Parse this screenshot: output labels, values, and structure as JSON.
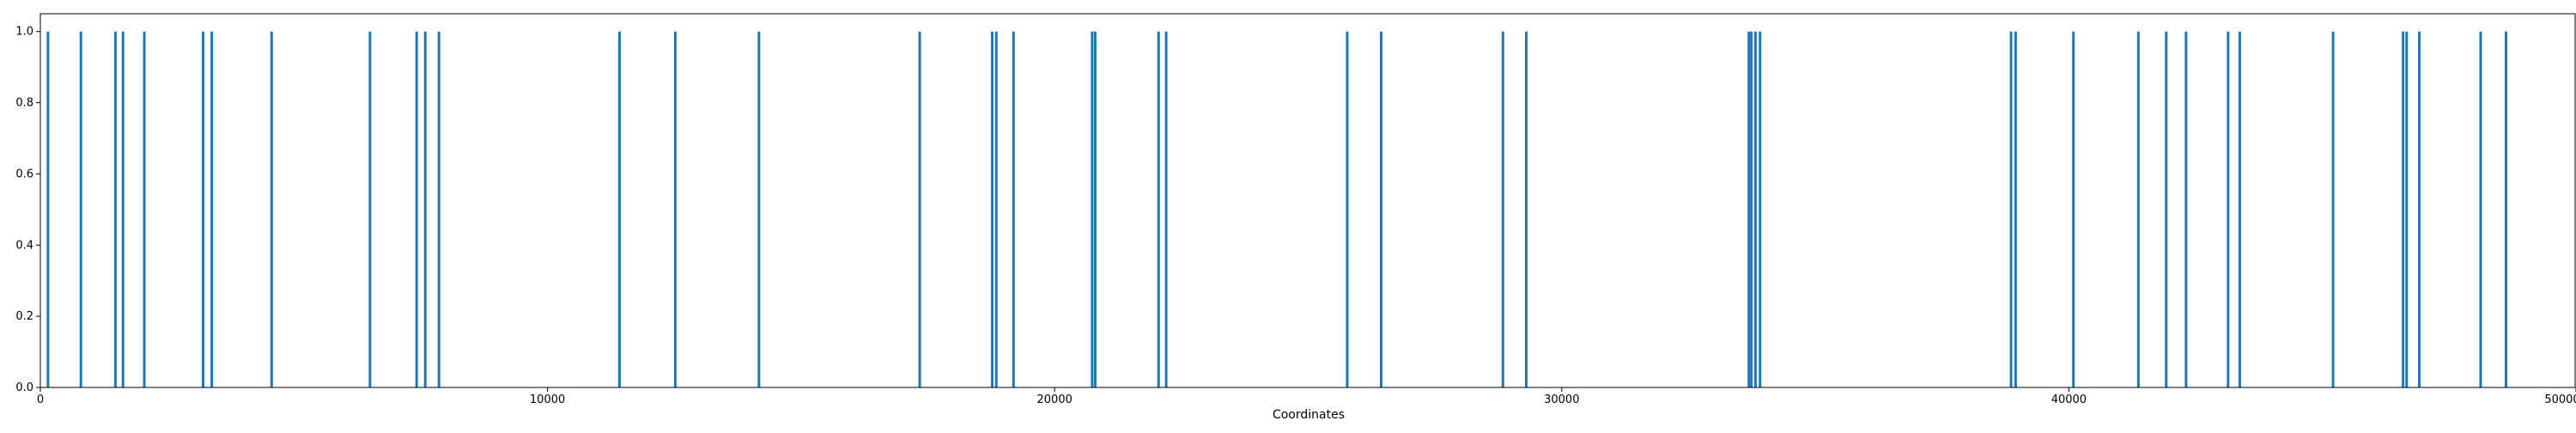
{
  "chart_data": {
    "type": "bar",
    "title": "",
    "xlabel": "Coordinates",
    "ylabel": "",
    "xlim": [
      0,
      50000
    ],
    "ylim": [
      0,
      1.05
    ],
    "grid": false,
    "bar_color": "#1f77b4",
    "x_ticks": [
      0,
      10000,
      20000,
      30000,
      40000,
      50000
    ],
    "x_tick_labels": [
      "0",
      "10000",
      "20000",
      "30000",
      "40000",
      "50000"
    ],
    "y_ticks": [
      0.0,
      0.2,
      0.4,
      0.6,
      0.8,
      1.0
    ],
    "y_tick_labels": [
      "0.0",
      "0.2",
      "0.4",
      "0.6",
      "0.8",
      "1.0"
    ],
    "x": [
      150,
      800,
      1480,
      1630,
      2050,
      3210,
      3380,
      4560,
      6500,
      7420,
      7590,
      7860,
      11420,
      12520,
      14170,
      17340,
      18770,
      18850,
      19190,
      20740,
      20800,
      22050,
      22200,
      25770,
      26440,
      28840,
      29300,
      33690,
      33740,
      33820,
      33910,
      38860,
      38950,
      40090,
      41370,
      41920,
      42310,
      43140,
      43370,
      45210,
      46590,
      46660,
      46910,
      48120,
      48620
    ],
    "values": [
      1,
      1,
      1,
      1,
      1,
      1,
      1,
      1,
      1,
      1,
      1,
      1,
      1,
      1,
      1,
      1,
      1,
      1,
      1,
      1,
      1,
      1,
      1,
      1,
      1,
      1,
      1,
      1,
      1,
      1,
      1,
      1,
      1,
      1,
      1,
      1,
      1,
      1,
      1,
      1,
      1,
      1,
      1,
      1,
      1
    ]
  }
}
